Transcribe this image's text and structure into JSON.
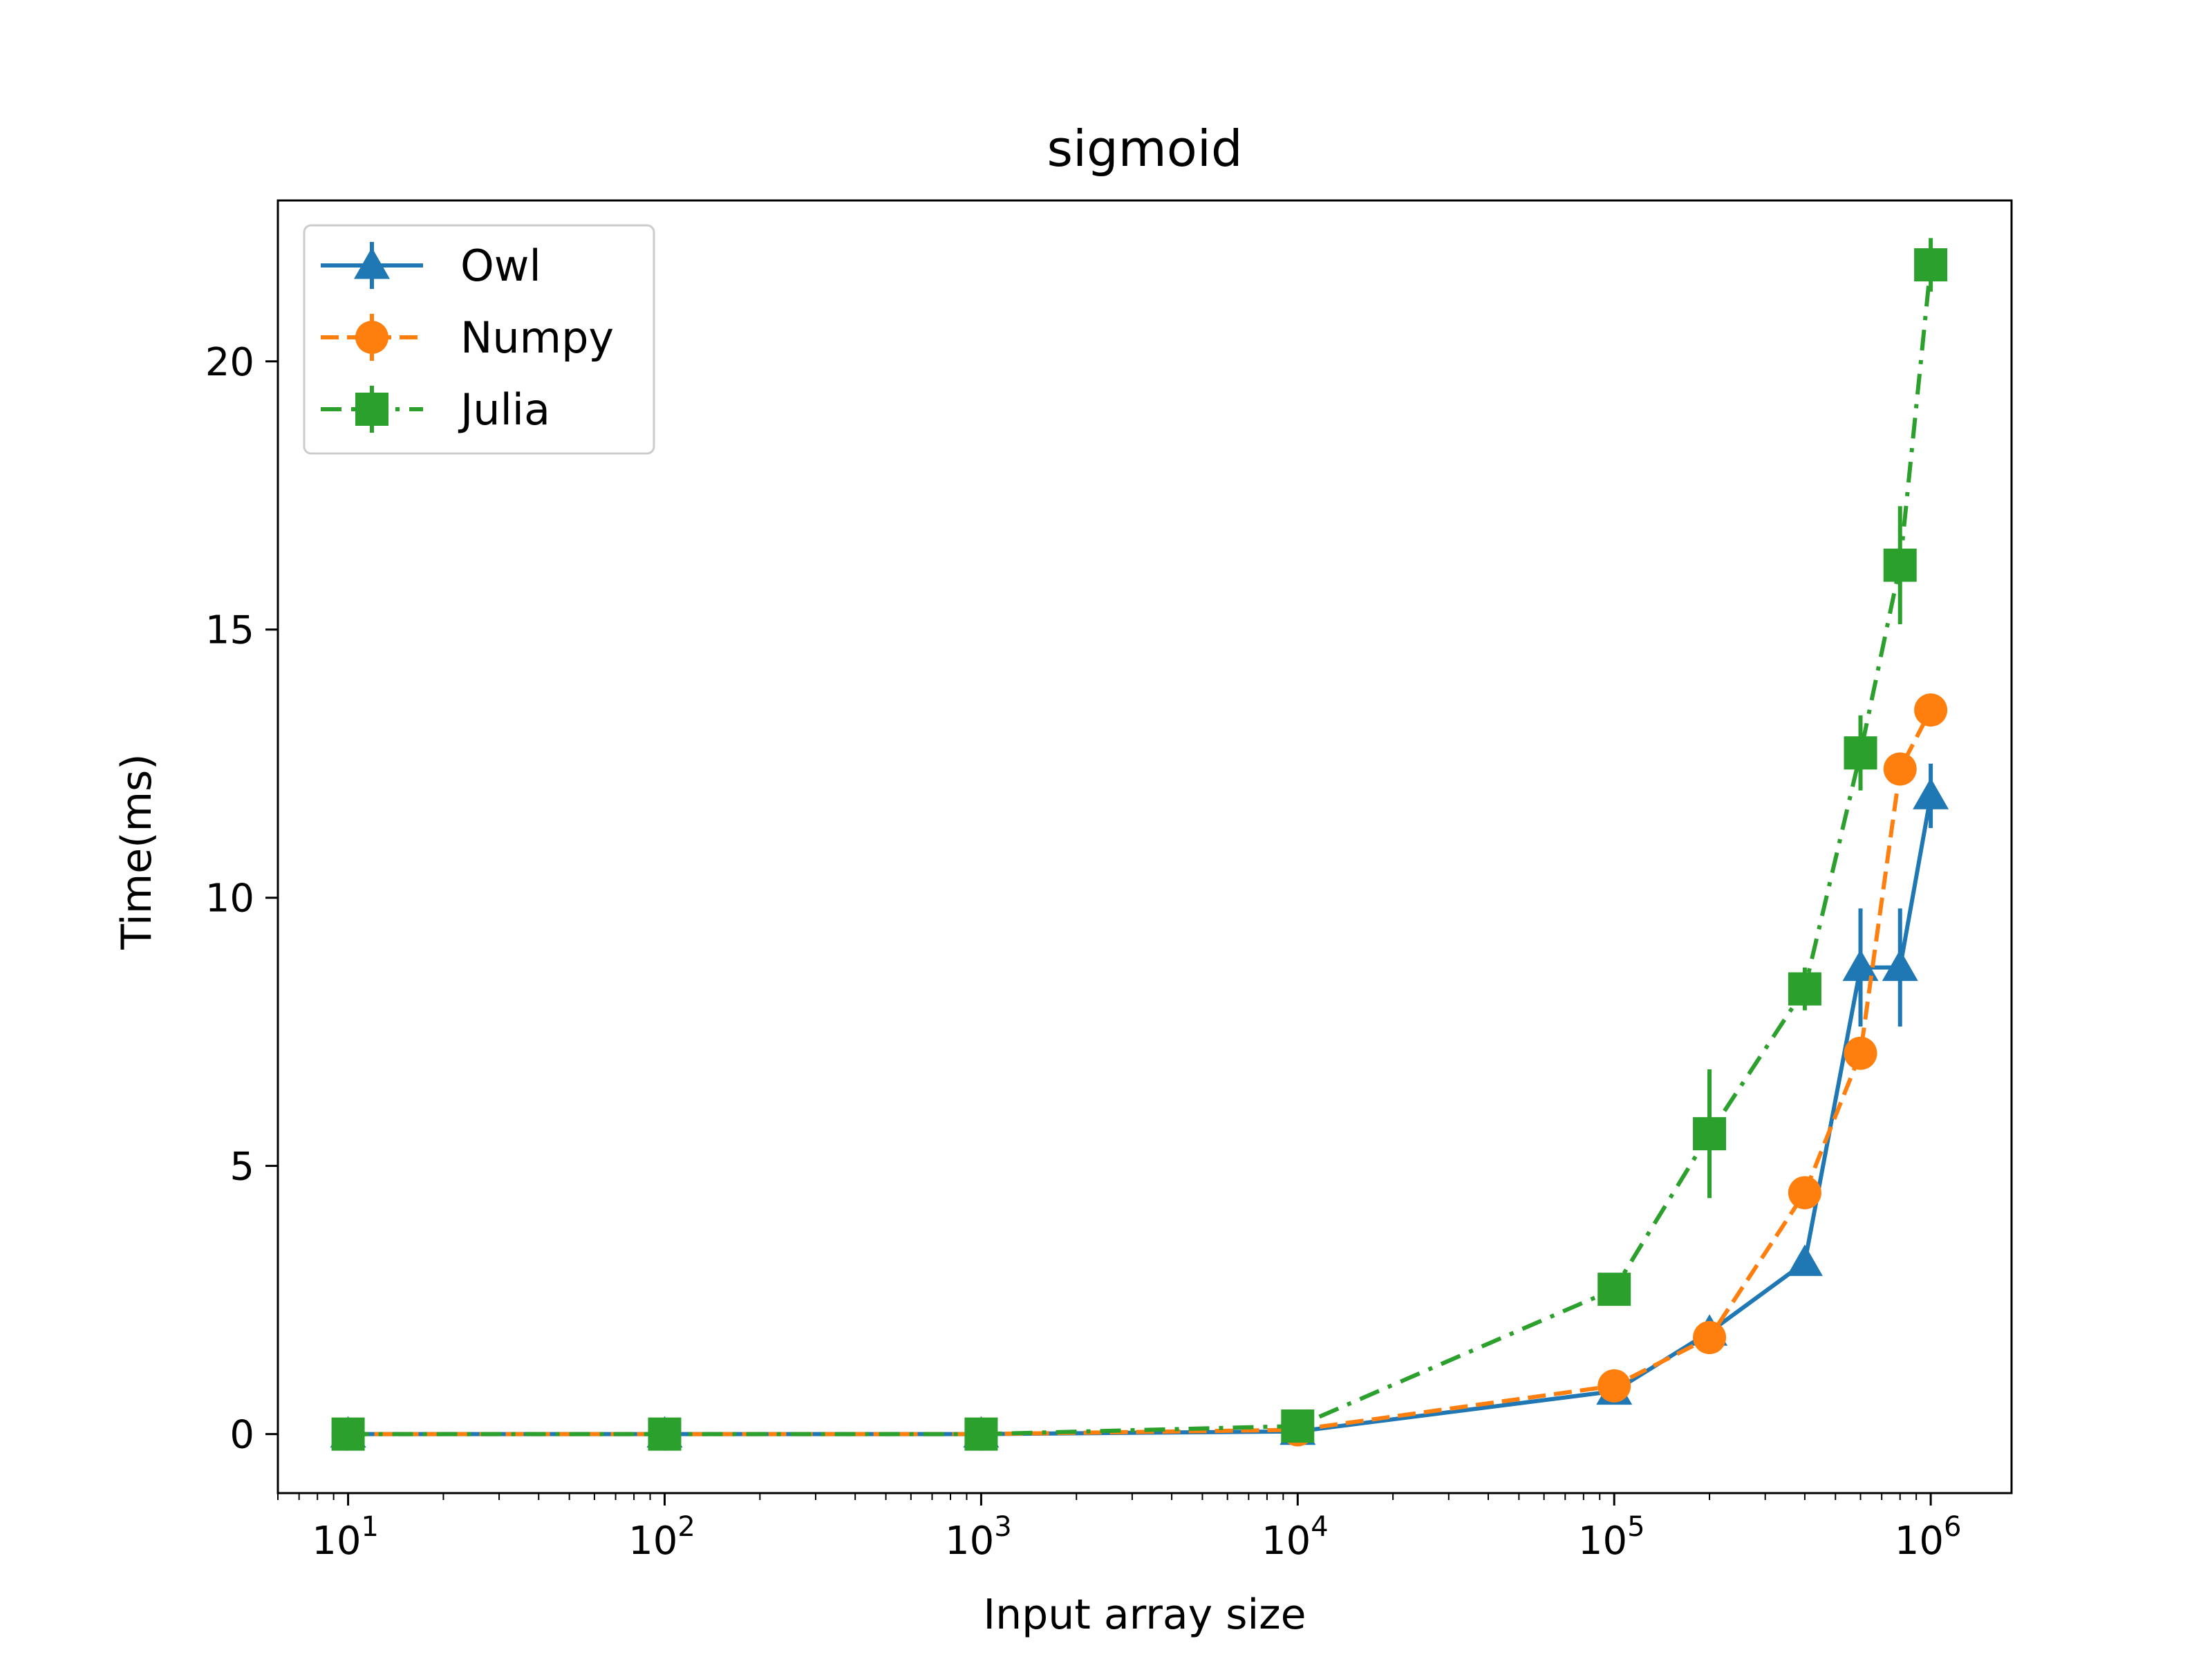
{
  "chart_data": {
    "type": "line",
    "title": "sigmoid",
    "xlabel": "Input array size",
    "ylabel": "Time(ms)",
    "xscale": "log",
    "xlim": [
      6,
      1800000
    ],
    "ylim": [
      -1.1,
      23.0
    ],
    "xticks": [
      {
        "value": 10,
        "base": "10",
        "exp": "1"
      },
      {
        "value": 100,
        "base": "10",
        "exp": "2"
      },
      {
        "value": 1000,
        "base": "10",
        "exp": "3"
      },
      {
        "value": 10000,
        "base": "10",
        "exp": "4"
      },
      {
        "value": 100000,
        "base": "10",
        "exp": "5"
      },
      {
        "value": 1000000,
        "base": "10",
        "exp": "6"
      }
    ],
    "yticks": [
      {
        "value": 0,
        "label": "0"
      },
      {
        "value": 5,
        "label": "5"
      },
      {
        "value": 10,
        "label": "10"
      },
      {
        "value": 15,
        "label": "15"
      },
      {
        "value": 20,
        "label": "20"
      }
    ],
    "grid": false,
    "legend_position": "top-left",
    "x": [
      10,
      100,
      1000,
      10000,
      100000,
      200000,
      400000,
      600000,
      800000,
      1000000
    ],
    "series": [
      {
        "name": "Owl",
        "color": "#1f77b4",
        "linestyle": "solid",
        "marker": "triangle",
        "values": [
          0.0,
          0.0,
          0.0,
          0.05,
          0.8,
          1.9,
          3.2,
          8.7,
          8.7,
          11.9
        ],
        "errors": [
          0.02,
          0.02,
          0.02,
          0.03,
          0.1,
          0.15,
          0.2,
          1.1,
          1.1,
          0.6
        ]
      },
      {
        "name": "Numpy",
        "color": "#ff7f0e",
        "linestyle": "dashed",
        "marker": "circle",
        "values": [
          0.0,
          0.0,
          0.0,
          0.08,
          0.9,
          1.8,
          4.5,
          7.1,
          12.4,
          13.5
        ],
        "errors": [
          0.02,
          0.02,
          0.02,
          0.03,
          0.1,
          0.1,
          0.2,
          0.2,
          0.3,
          0.2
        ]
      },
      {
        "name": "Julia",
        "color": "#2ca02c",
        "linestyle": "dashdot",
        "marker": "square",
        "values": [
          0.0,
          0.0,
          0.0,
          0.15,
          2.7,
          5.6,
          8.3,
          12.7,
          16.2,
          21.8
        ],
        "errors": [
          0.02,
          0.02,
          0.02,
          0.05,
          0.15,
          1.2,
          0.4,
          0.7,
          1.1,
          0.5
        ]
      }
    ]
  }
}
